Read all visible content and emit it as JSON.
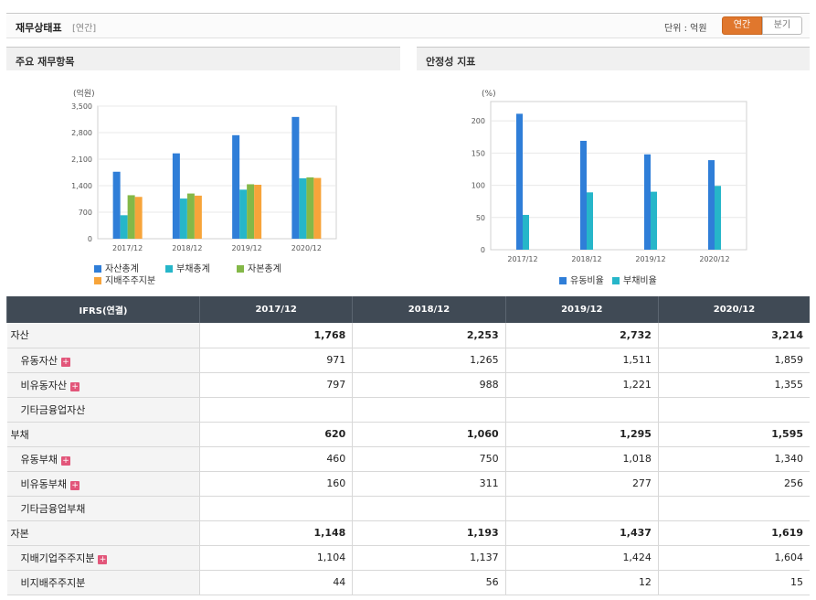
{
  "header": {
    "title": "재무상태표",
    "sub": "[연간]",
    "unit_label": "단위 : 억원",
    "annual_label": "연간",
    "quarter_label": "분기"
  },
  "panels": {
    "left_title": "주요 재무항목",
    "right_title": "안정성 지표"
  },
  "colors": {
    "series1": "#2f7ed8",
    "series2": "#26b6c9",
    "series3": "#84b848",
    "series4": "#f7a43a",
    "header_bg": "#404a55",
    "accent": "#e0772d"
  },
  "chart_data": [
    {
      "type": "bar",
      "unit": "(억원)",
      "categories": [
        "2017/12",
        "2018/12",
        "2019/12",
        "2020/12"
      ],
      "ylim": [
        0,
        3500
      ],
      "yticks": [
        "3,500",
        "2,800",
        "2,100",
        "1,400",
        "700",
        "0"
      ],
      "ytick_values": [
        3500,
        2800,
        2100,
        1400,
        700,
        0
      ],
      "series": [
        {
          "name": "자산총계",
          "values": [
            1768,
            2253,
            2732,
            3214
          ]
        },
        {
          "name": "부채총계",
          "values": [
            620,
            1060,
            1295,
            1595
          ]
        },
        {
          "name": "자본총계",
          "values": [
            1148,
            1193,
            1437,
            1619
          ]
        },
        {
          "name": "지배주주지분",
          "values": [
            1104,
            1137,
            1424,
            1604
          ]
        }
      ]
    },
    {
      "type": "bar",
      "unit": "(%)",
      "categories": [
        "2017/12",
        "2018/12",
        "2019/12",
        "2020/12"
      ],
      "ylim": [
        0,
        230
      ],
      "yticks": [
        "200",
        "150",
        "100",
        "50",
        "0"
      ],
      "ytick_values": [
        200,
        150,
        100,
        50,
        0
      ],
      "series": [
        {
          "name": "유동비율",
          "values": [
            211,
            169,
            148,
            139
          ]
        },
        {
          "name": "부채비율",
          "values": [
            54,
            89,
            90,
            99
          ]
        }
      ]
    }
  ],
  "table": {
    "corner": "IFRS(연결)",
    "columns": [
      "2017/12",
      "2018/12",
      "2019/12",
      "2020/12"
    ],
    "rows": [
      {
        "label": "자산",
        "type": "main",
        "plus": false,
        "values": [
          "1,768",
          "2,253",
          "2,732",
          "3,214"
        ]
      },
      {
        "label": "유동자산",
        "type": "sub",
        "plus": true,
        "values": [
          "971",
          "1,265",
          "1,511",
          "1,859"
        ]
      },
      {
        "label": "비유동자산",
        "type": "sub",
        "plus": true,
        "values": [
          "797",
          "988",
          "1,221",
          "1,355"
        ]
      },
      {
        "label": "기타금융업자산",
        "type": "sub",
        "plus": false,
        "values": [
          "",
          "",
          "",
          ""
        ]
      },
      {
        "label": "부채",
        "type": "main",
        "plus": false,
        "values": [
          "620",
          "1,060",
          "1,295",
          "1,595"
        ]
      },
      {
        "label": "유동부채",
        "type": "sub",
        "plus": true,
        "values": [
          "460",
          "750",
          "1,018",
          "1,340"
        ]
      },
      {
        "label": "비유동부채",
        "type": "sub",
        "plus": true,
        "values": [
          "160",
          "311",
          "277",
          "256"
        ]
      },
      {
        "label": "기타금융업부채",
        "type": "sub",
        "plus": false,
        "values": [
          "",
          "",
          "",
          ""
        ]
      },
      {
        "label": "자본",
        "type": "main",
        "plus": false,
        "values": [
          "1,148",
          "1,193",
          "1,437",
          "1,619"
        ]
      },
      {
        "label": "지배기업주주지분",
        "type": "sub",
        "plus": true,
        "values": [
          "1,104",
          "1,137",
          "1,424",
          "1,604"
        ]
      },
      {
        "label": "비지배주주지분",
        "type": "sub",
        "plus": false,
        "values": [
          "44",
          "56",
          "12",
          "15"
        ]
      }
    ]
  }
}
